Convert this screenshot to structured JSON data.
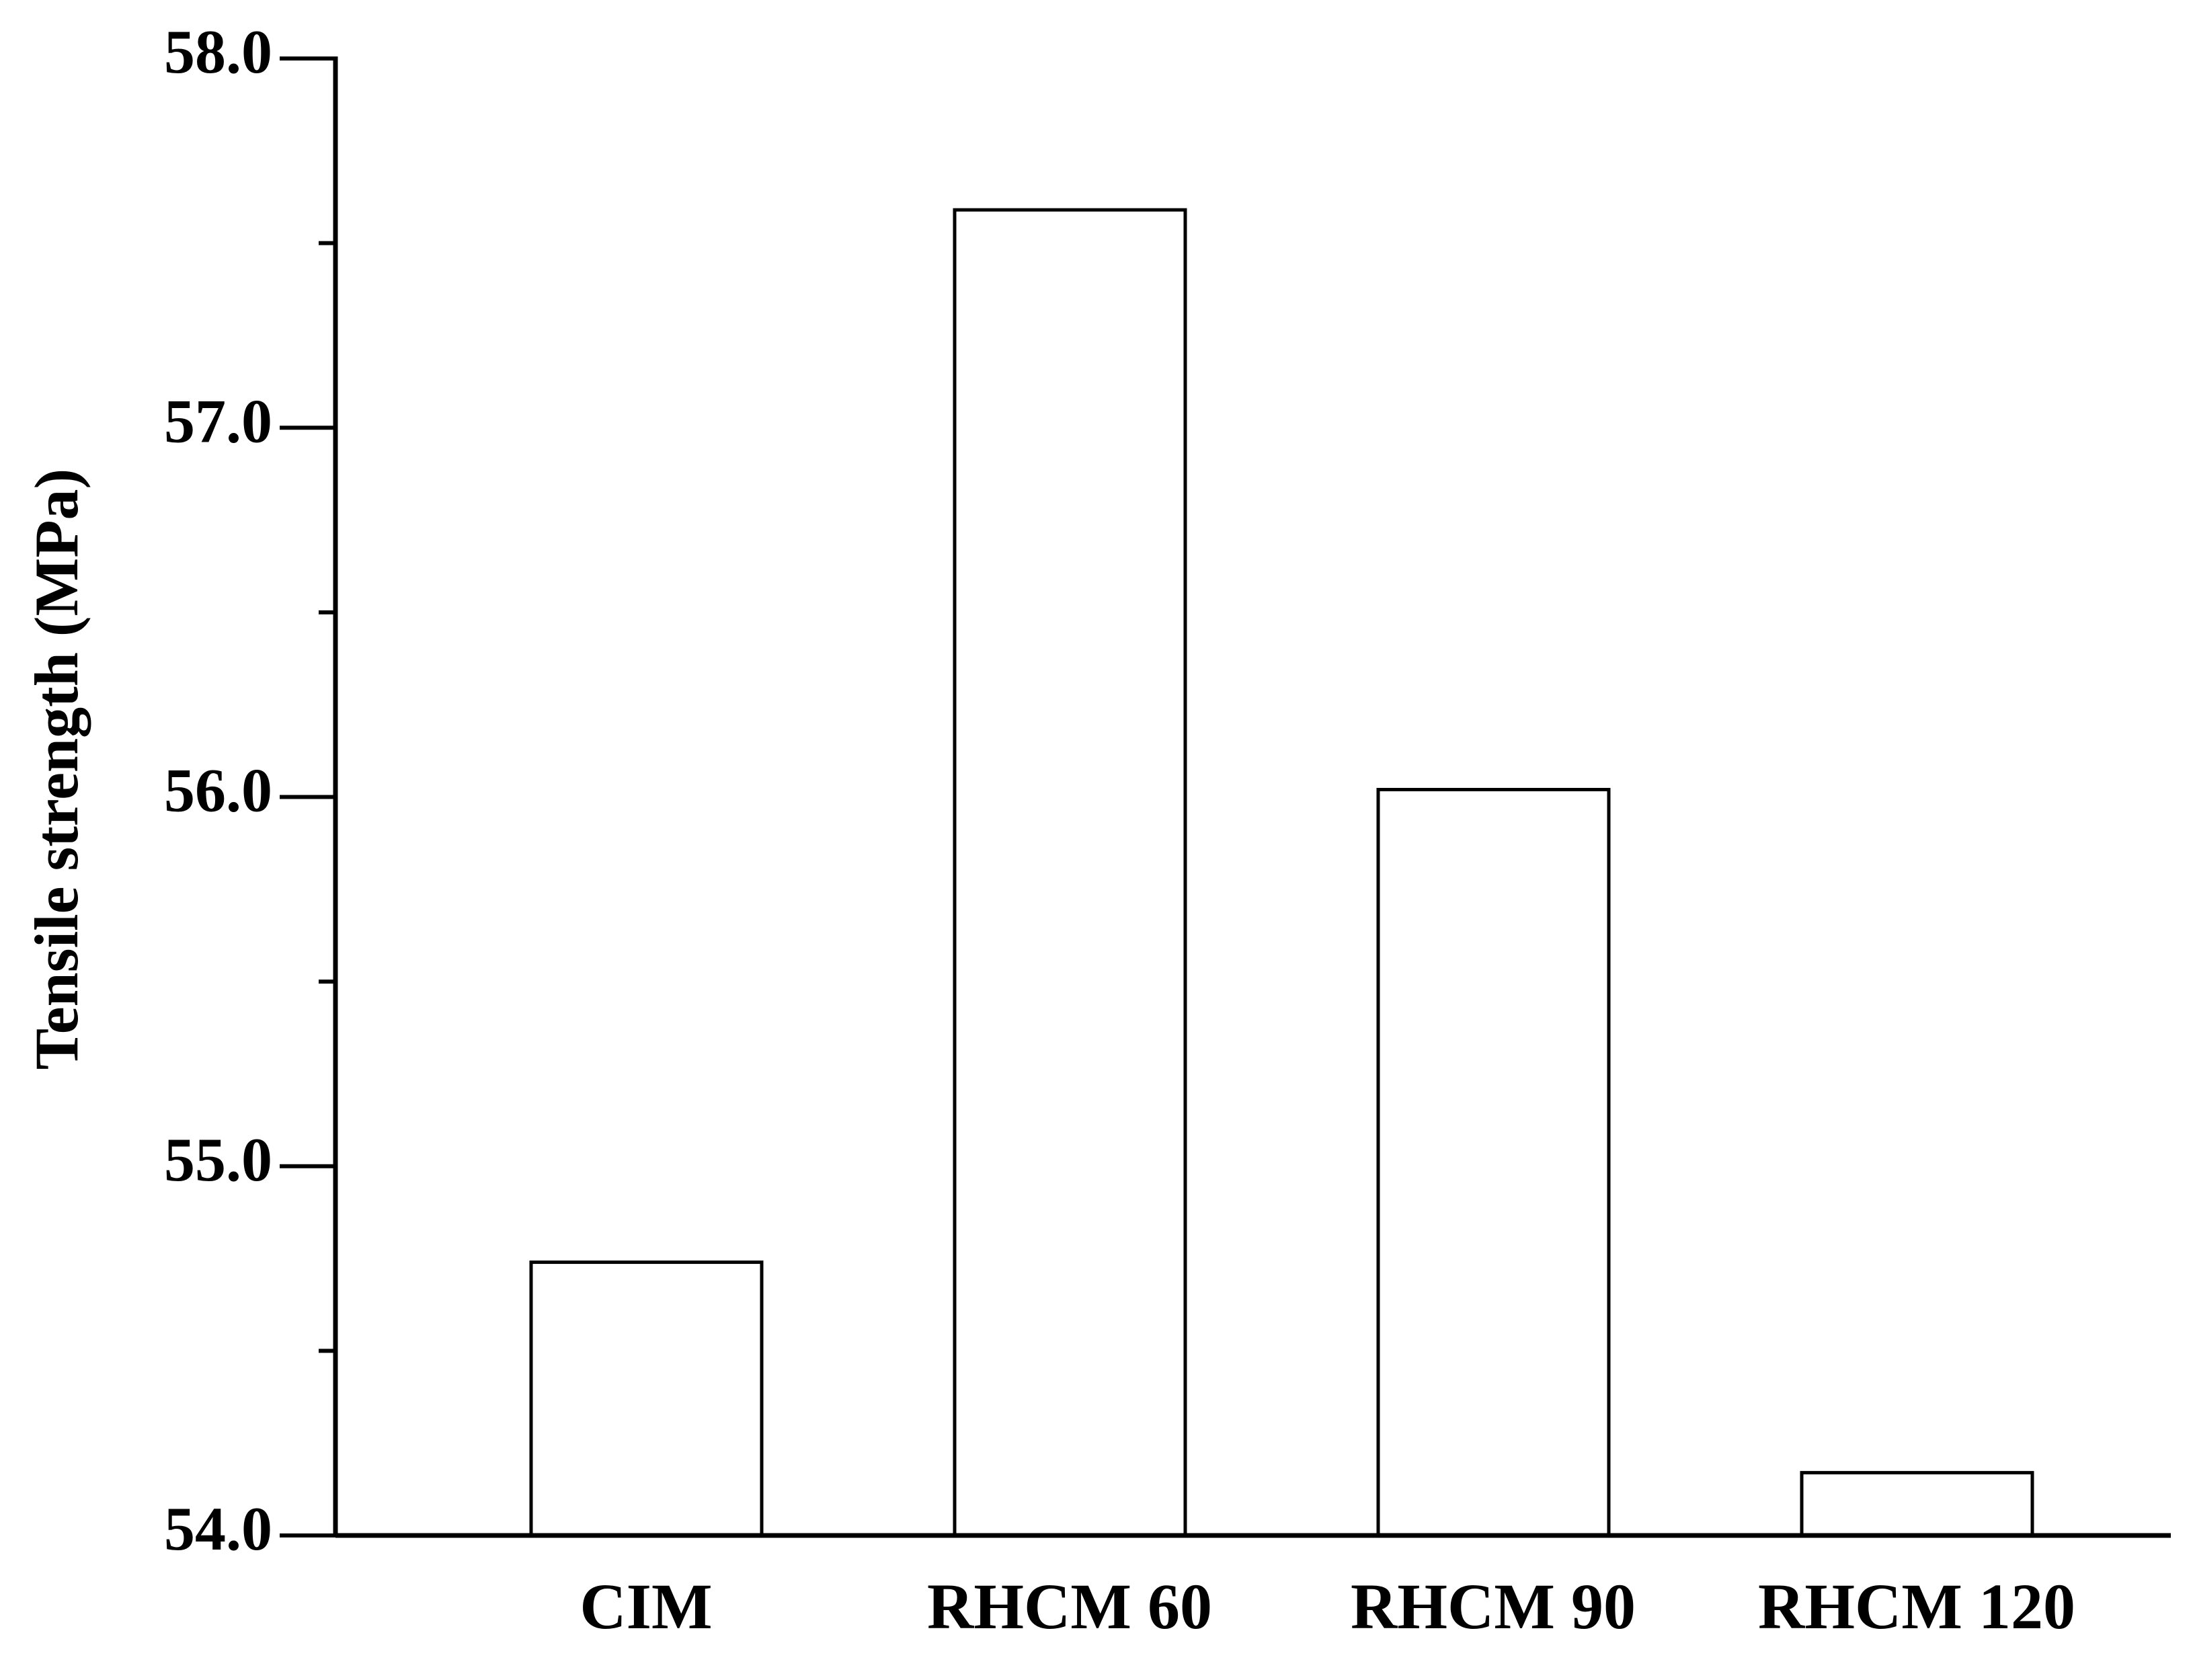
{
  "chart_data": {
    "type": "bar",
    "y_label": "Tensile strength (MPa)",
    "categories": [
      "CIM",
      "RHCM 60",
      "RHCM 90",
      "RHCM 120"
    ],
    "values": [
      54.74,
      57.59,
      56.02,
      54.17
    ],
    "color": "#ffffff",
    "ylim": [
      54,
      58
    ],
    "yticks": [
      {
        "value": 54,
        "label": "54.0"
      },
      {
        "value": 55,
        "label": "55.0"
      },
      {
        "value": 56,
        "label": "56.0"
      },
      {
        "value": 57,
        "label": "57.0"
      },
      {
        "value": 58,
        "label": "58.0"
      }
    ],
    "yminorticks": [
      54.5,
      55.5,
      56.5,
      57.5
    ],
    "grid": false
  }
}
